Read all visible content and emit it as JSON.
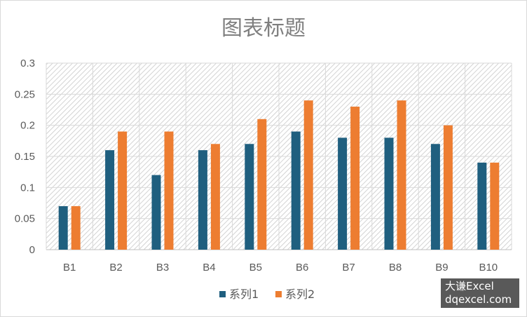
{
  "chart_data": {
    "type": "bar",
    "title": "图表标题",
    "categories": [
      "B1",
      "B2",
      "B3",
      "B4",
      "B5",
      "B6",
      "B7",
      "B8",
      "B9",
      "B10"
    ],
    "series": [
      {
        "name": "系列1",
        "color": "#1f5f7f",
        "values": [
          0.07,
          0.16,
          0.12,
          0.16,
          0.17,
          0.19,
          0.18,
          0.18,
          0.17,
          0.14
        ]
      },
      {
        "name": "系列2",
        "color": "#ed7d31",
        "values": [
          0.07,
          0.19,
          0.19,
          0.17,
          0.21,
          0.24,
          0.23,
          0.24,
          0.2,
          0.14
        ]
      }
    ],
    "ylim": [
      0,
      0.3
    ],
    "yticks": [
      "0",
      "0.05",
      "0.1",
      "0.15",
      "0.2",
      "0.25",
      "0.3"
    ],
    "xlabel": "",
    "ylabel": "",
    "grid": true,
    "legend_position": "bottom"
  },
  "watermark": {
    "line1": "大谦Excel",
    "line2": "dqexcel.com"
  }
}
